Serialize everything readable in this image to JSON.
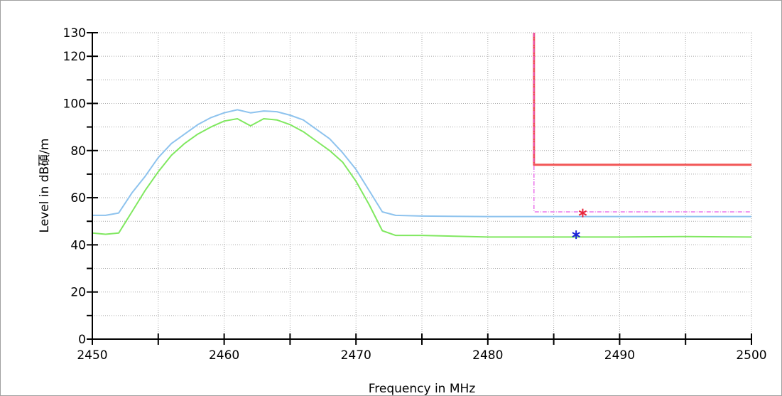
{
  "chart_data": {
    "type": "line",
    "xlabel": "Frequency in MHz",
    "ylabel": "Level in dB碩/m",
    "xlim": [
      2450,
      2500
    ],
    "ylim": [
      0,
      130
    ],
    "x_ticks": [
      2450,
      2460,
      2470,
      2480,
      2490,
      2500
    ],
    "x_minor_ticks": [
      2455,
      2465,
      2475,
      2485,
      2495
    ],
    "y_ticks": [
      0,
      20,
      40,
      60,
      80,
      100,
      120,
      130
    ],
    "y_minor_ticks": [
      10,
      30,
      50,
      70,
      90,
      110
    ],
    "grid": true,
    "series": [
      {
        "color": "#8ec3ee",
        "style": "line",
        "points": [
          [
            2450,
            52.5
          ],
          [
            2451,
            52.5
          ],
          [
            2452,
            53.5
          ],
          [
            2453,
            62
          ],
          [
            2454,
            69
          ],
          [
            2455,
            77
          ],
          [
            2456,
            83
          ],
          [
            2457,
            87
          ],
          [
            2458,
            91
          ],
          [
            2459,
            94
          ],
          [
            2460,
            96
          ],
          [
            2461,
            97.3
          ],
          [
            2462,
            96
          ],
          [
            2463,
            96.8
          ],
          [
            2464,
            96.5
          ],
          [
            2465,
            95
          ],
          [
            2466,
            93
          ],
          [
            2467,
            89
          ],
          [
            2468,
            85
          ],
          [
            2469,
            79
          ],
          [
            2470,
            72
          ],
          [
            2471,
            63
          ],
          [
            2472,
            54
          ],
          [
            2473,
            52.5
          ],
          [
            2475,
            52.2
          ],
          [
            2480,
            52
          ],
          [
            2485,
            52
          ],
          [
            2490,
            52
          ],
          [
            2495,
            52
          ],
          [
            2500,
            52
          ]
        ]
      },
      {
        "color": "#80e860",
        "style": "line",
        "points": [
          [
            2450,
            45
          ],
          [
            2451,
            44.5
          ],
          [
            2452,
            45
          ],
          [
            2453,
            54
          ],
          [
            2454,
            63
          ],
          [
            2455,
            71
          ],
          [
            2456,
            78
          ],
          [
            2457,
            83
          ],
          [
            2458,
            87
          ],
          [
            2459,
            90
          ],
          [
            2460,
            92.5
          ],
          [
            2461,
            93.5
          ],
          [
            2462,
            90.5
          ],
          [
            2463,
            93.5
          ],
          [
            2464,
            93
          ],
          [
            2465,
            91
          ],
          [
            2466,
            88
          ],
          [
            2467,
            84
          ],
          [
            2468,
            80
          ],
          [
            2469,
            75
          ],
          [
            2470,
            67
          ],
          [
            2471,
            57
          ],
          [
            2472,
            46
          ],
          [
            2473,
            44
          ],
          [
            2475,
            44
          ],
          [
            2480,
            43.3
          ],
          [
            2485,
            43.3
          ],
          [
            2490,
            43.3
          ],
          [
            2495,
            43.5
          ],
          [
            2500,
            43.3
          ]
        ]
      },
      {
        "color": "#f25555",
        "style": "limit",
        "points": [
          [
            2483.5,
            130
          ],
          [
            2483.5,
            74
          ],
          [
            2500,
            74
          ]
        ]
      },
      {
        "color": "#e85ce8",
        "style": "dashed-limit",
        "points": [
          [
            2483.5,
            130
          ],
          [
            2483.5,
            54
          ],
          [
            2500,
            54
          ]
        ]
      }
    ],
    "markers": [
      {
        "x": 2487.2,
        "y": 53.5,
        "color": "#e8263c",
        "symbol": "*"
      },
      {
        "x": 2486.7,
        "y": 44.3,
        "color": "#1a22d8",
        "symbol": "*"
      }
    ]
  }
}
